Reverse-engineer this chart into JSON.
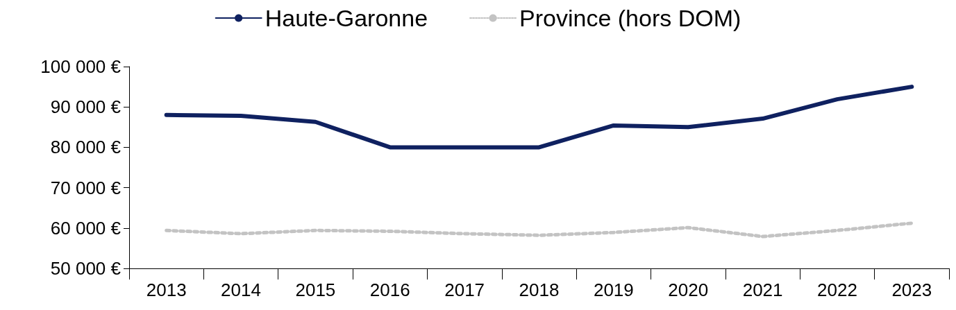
{
  "chart_data": {
    "type": "line",
    "categories": [
      "2013",
      "2014",
      "2015",
      "2016",
      "2017",
      "2018",
      "2019",
      "2020",
      "2021",
      "2022",
      "2023"
    ],
    "series": [
      {
        "name": "Haute-Garonne",
        "color": "#0f2160",
        "line_style": "solid",
        "values": [
          88000,
          87800,
          86300,
          80000,
          80000,
          80000,
          85400,
          85000,
          87100,
          91900,
          95000
        ]
      },
      {
        "name": "Province (hors DOM)",
        "color": "#c3c3c3",
        "line_style": "dotted",
        "values": [
          59400,
          58600,
          59400,
          59200,
          58600,
          58200,
          58900,
          60100,
          57900,
          59400,
          61200
        ]
      }
    ],
    "ylim": [
      50000,
      100000
    ],
    "yticks": [
      {
        "value": 50000,
        "label": "50 000 €"
      },
      {
        "value": 60000,
        "label": "60 000 €"
      },
      {
        "value": 70000,
        "label": "70 000 €"
      },
      {
        "value": 80000,
        "label": "80 000 €"
      },
      {
        "value": 90000,
        "label": "90 000 €"
      },
      {
        "value": 100000,
        "label": "100 000 €"
      }
    ],
    "grid": false,
    "legend": "top",
    "marker": "none"
  }
}
